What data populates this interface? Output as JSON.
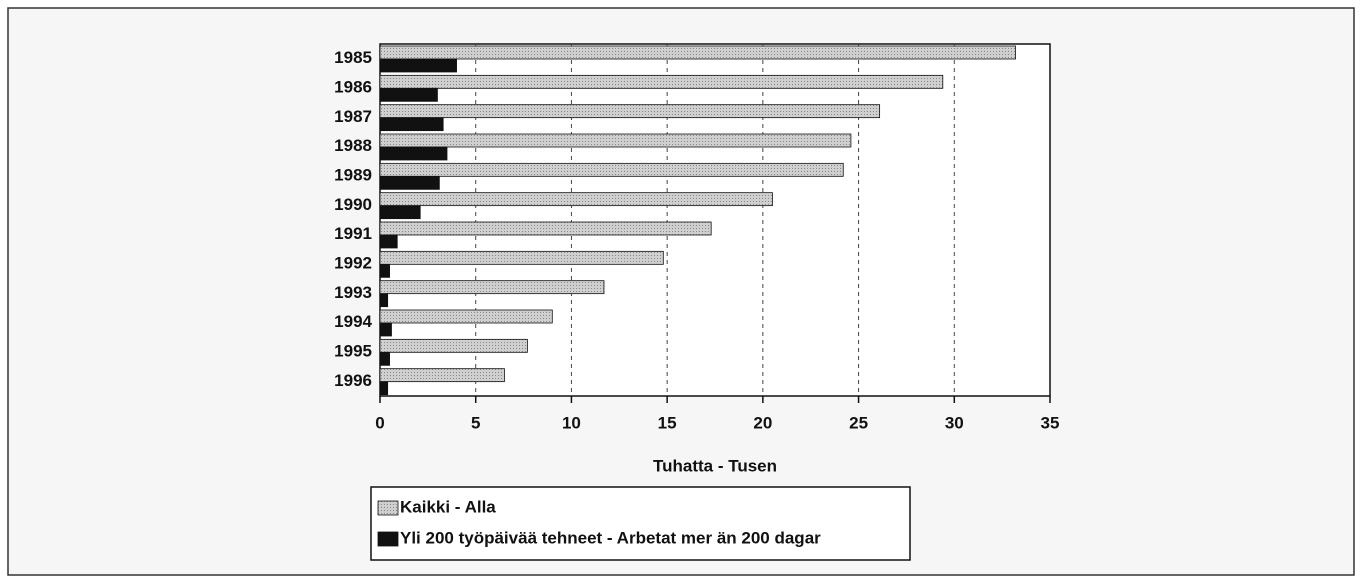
{
  "chart_data": {
    "type": "barh",
    "categories": [
      "1985",
      "1986",
      "1987",
      "1988",
      "1989",
      "1990",
      "1991",
      "1992",
      "1993",
      "1994",
      "1995",
      "1996"
    ],
    "series": [
      {
        "name": "Kaikki - Alla",
        "color": "#c4c4c4",
        "values": [
          33.2,
          29.4,
          26.1,
          24.6,
          24.2,
          20.5,
          17.3,
          14.8,
          11.7,
          9.0,
          7.7,
          6.5
        ]
      },
      {
        "name": "Yli 200 työpäivää tehneet - Arbetat mer än 200 dagar",
        "color": "#111111",
        "values": [
          4.0,
          3.0,
          3.3,
          3.5,
          3.1,
          2.1,
          0.9,
          0.5,
          0.4,
          0.6,
          0.5,
          0.4
        ]
      }
    ],
    "xlabel": "Tuhatta - Tusen",
    "xlim": [
      0,
      35
    ],
    "xticks": [
      0,
      5,
      10,
      15,
      20,
      25,
      30,
      35
    ],
    "grid": true,
    "legend": "bottom"
  }
}
